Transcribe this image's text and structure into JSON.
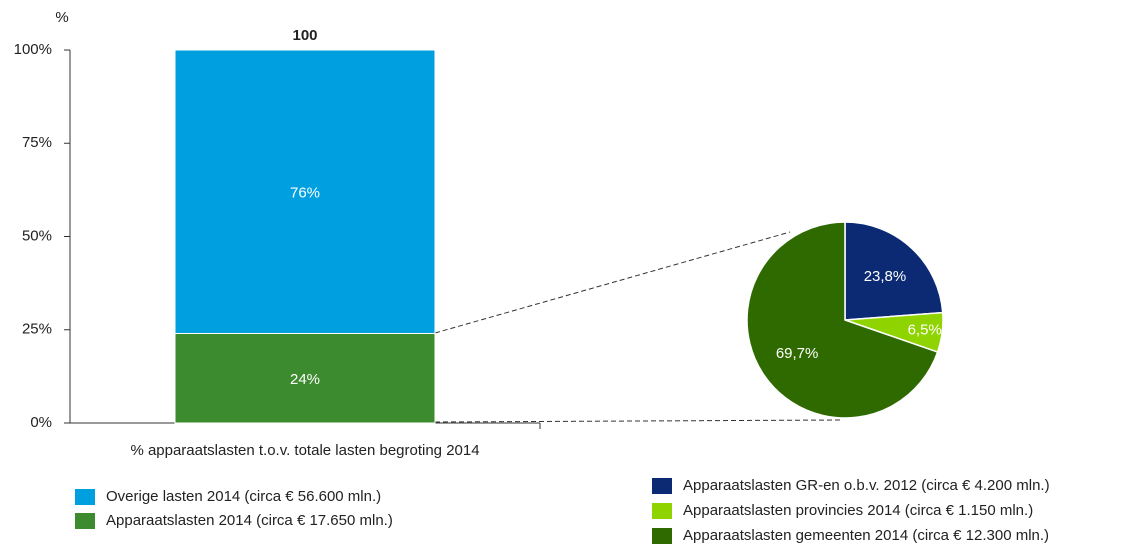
{
  "chart_data": [
    {
      "type": "stacked-bar",
      "ylabel": "%",
      "categories": [
        "% apparaatslasten t.o.v. totale lasten begroting 2014"
      ],
      "totals": [
        100
      ],
      "series": [
        {
          "name": "Apparaatslasten 2014 (circa € 17.650 mln.)",
          "color": "#3d8b2f",
          "values": [
            24
          ],
          "value_labels": [
            "24%"
          ]
        },
        {
          "name": "Overige lasten 2014 (circa € 56.600 mln.)",
          "color": "#00a0e0",
          "values": [
            76
          ],
          "value_labels": [
            "76%"
          ]
        }
      ],
      "ylim": [
        0,
        100
      ],
      "yticks": [
        {
          "value": 0,
          "label": "0%"
        },
        {
          "value": 25,
          "label": "25%"
        },
        {
          "value": 50,
          "label": "50%"
        },
        {
          "value": 75,
          "label": "75%"
        },
        {
          "value": 100,
          "label": "100%"
        }
      ]
    },
    {
      "type": "pie",
      "categories": [
        "Apparaatslasten GR-en o.b.v. 2012 (circa € 4.200 mln.)",
        "Apparaatslasten provincies 2014 (circa € 1.150 mln.)",
        "Apparaatslasten gemeenten 2014 (circa € 12.300 mln.)"
      ],
      "values": [
        23.8,
        6.5,
        69.7
      ],
      "value_labels": [
        "23,8%",
        "6,5%",
        "69,7%"
      ],
      "colors": [
        "#0b2a73",
        "#8fd400",
        "#2f6a00"
      ]
    }
  ]
}
